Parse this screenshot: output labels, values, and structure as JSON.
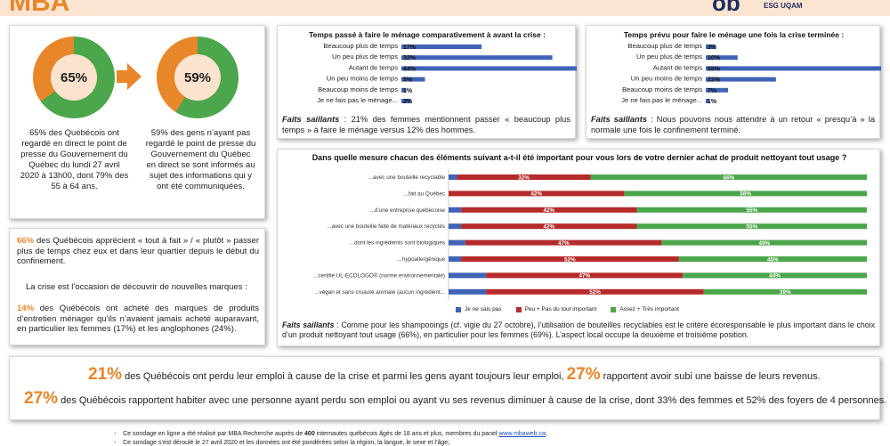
{
  "header": {
    "logo_left": "MBA",
    "logo_right": "ob",
    "logo_right_sub": "ESG UQAM"
  },
  "colors": {
    "orange": "#e8862a",
    "green": "#4ca64c",
    "blue": "#3f63b5",
    "red": "#b52a2a",
    "panel_bg": "#fbe3ce"
  },
  "left_panel": {
    "donut1": {
      "label": "65%",
      "value": 65
    },
    "donut2": {
      "label": "59%",
      "value": 59
    },
    "text1": "65% des Québécois ont regardé en direct le point de presse du Gouvernement du Québec du lundi 27 avril 2020 à 13h00, dont 79% des 55 à 64 ans.",
    "text2": "59% des gens n’ayant pas regardé le point de presse du Gouvernement du Québec en direct se sont informés au sujet des informations qui y ont été communiquées."
  },
  "left_panel2": {
    "p1_num": "66%",
    "p1_text": " des Québécois apprécient « tout à fait » / « plutôt » passer plus de temps chez eux et dans leur quartier depuis le début du confinement.",
    "p2_text": "La crise est l’occasion de découvrir de nouvelles marques :",
    "p3_num": "14%",
    "p3_text": " des Québécois ont acheté des marques de produits d’entretien ménager qu’ils n’avaient jamais acheté auparavant, en particulier les femmes (17%) et les anglophones (24%)."
  },
  "chart_data": [
    {
      "type": "bar",
      "title": "Temps passé à faire le ménage comparativement à avant la crise :",
      "categories": [
        "Beaucoup plus de temps",
        "Un peu plus de temps",
        "Autant de temps",
        "Un peu moins de temps",
        "Beaucoup moins de temps",
        "Je ne fais pas le ménage..."
      ],
      "values": [
        17,
        32,
        44,
        5,
        1,
        2
      ],
      "labels": [
        "17%",
        "32%",
        "44%",
        "5%",
        "1%",
        "2%"
      ],
      "xlim": [
        0,
        50
      ]
    },
    {
      "type": "bar",
      "title": "Temps prévu pour faire le ménage une fois la crise terminée :",
      "categories": [
        "Beaucoup plus de temps",
        "Un peu plus de temps",
        "Autant de temps",
        "Un peu moins de temps",
        "Beaucoup moins de temps",
        "Je ne fais pas le ménage..."
      ],
      "values": [
        3,
        10,
        55,
        22,
        7,
        1
      ],
      "labels": [
        "3%",
        "10%",
        "55%",
        "22%",
        "7%",
        "1%"
      ],
      "xlim": [
        0,
        60
      ]
    },
    {
      "type": "bar",
      "stacked": true,
      "title": "Dans quelle mesure chacun des éléments suivant a-t-il été important pour vous lors de votre dernier achat de produit nettoyant tout usage ?",
      "categories": [
        "...avec une bouteille recyclable",
        "...fait au Québec",
        "...d’une entreprise québécoise",
        "...avec une bouteille faite de matériaux recyclés",
        "...dont les ingrédients sont biologiques",
        "...hypoallergénique",
        "...certifié UL-ECOLOGO® (norme environnementale)",
        "...végan et sans cruauté animale (aucun ingrédient..."
      ],
      "series": [
        {
          "name": "Je ne sais pas",
          "color": "#3f63b5",
          "values": [
            2,
            0,
            3,
            3,
            4,
            3,
            9,
            9
          ]
        },
        {
          "name": "Peu + Pas du tout important",
          "color": "#b52a2a",
          "values": [
            32,
            42,
            42,
            42,
            47,
            52,
            47,
            52
          ]
        },
        {
          "name": "Assez + Très important",
          "color": "#4ca64c",
          "values": [
            66,
            58,
            55,
            55,
            49,
            45,
            44,
            39
          ]
        }
      ],
      "xlim": [
        0,
        100
      ]
    }
  ],
  "chart_labels": {
    "c1": [
      "17%",
      "32%",
      "44%",
      "5%",
      "1%",
      "2%"
    ],
    "c2": [
      "3%",
      "10%",
      "55%",
      "22%",
      "7%",
      "1%"
    ],
    "c3_red": [
      "32%",
      "42%",
      "42%",
      "42%",
      "47%",
      "52%",
      "47%",
      "52%"
    ],
    "c3_green": [
      "66%",
      "58%",
      "55%",
      "55%",
      "49%",
      "45%",
      "44%",
      "39%"
    ]
  },
  "faits1": {
    "label": "Faits saillants",
    "text": " : 21% des femmes mentionnent passer « beaucoup plus temps » à faire le ménage versus 12% des hommes."
  },
  "faits2": {
    "label": "Faits saillants",
    "text": " : Nous pouvons nous attendre à un retour « presqu’à » la normale une fois le confinement terminé."
  },
  "faits3": {
    "label": "Faits saillants",
    "text": " : Comme pour les shampooings (cf. vigie du 27 octobre), l’utilisation de bouteilles recyclables est le critère écoresponsable le plus important dans le choix d’un produit nettoyant tout usage (66%), en particulier pour les femmes (69%). L’aspect local occupe la deuxième et troisième position."
  },
  "bottom_stats": {
    "num1": "21%",
    "text1a": " des Québécois ont perdu leur emploi à cause de la crise et parmi les gens ayant toujours leur emploi, ",
    "num2": "27%",
    "text1b": " rapportent avoir subi une baisse de leurs revenus.",
    "num3": "27%",
    "text2": " des Québécois rapportent habiter avec une personne ayant perdu son emploi ou ayant vu ses revenus diminuer à cause de la crise, dont 33% des femmes et 52% des foyers de 4 personnes."
  },
  "footer": {
    "line1a": "Ce sondage en ligne a été réalisé par MBA Recherche auprès de ",
    "line1b": "400",
    "line1c": " internautes québécois âgés de 18 ans et plus, membres du panel ",
    "link": "www.mbaweb.ca",
    "line1d": ";",
    "line2": "Ce sondage s’est déroulé le 27 avril 2020 et les données ont été pondérées selon la région, la langue, le sexe et l’âge;"
  }
}
